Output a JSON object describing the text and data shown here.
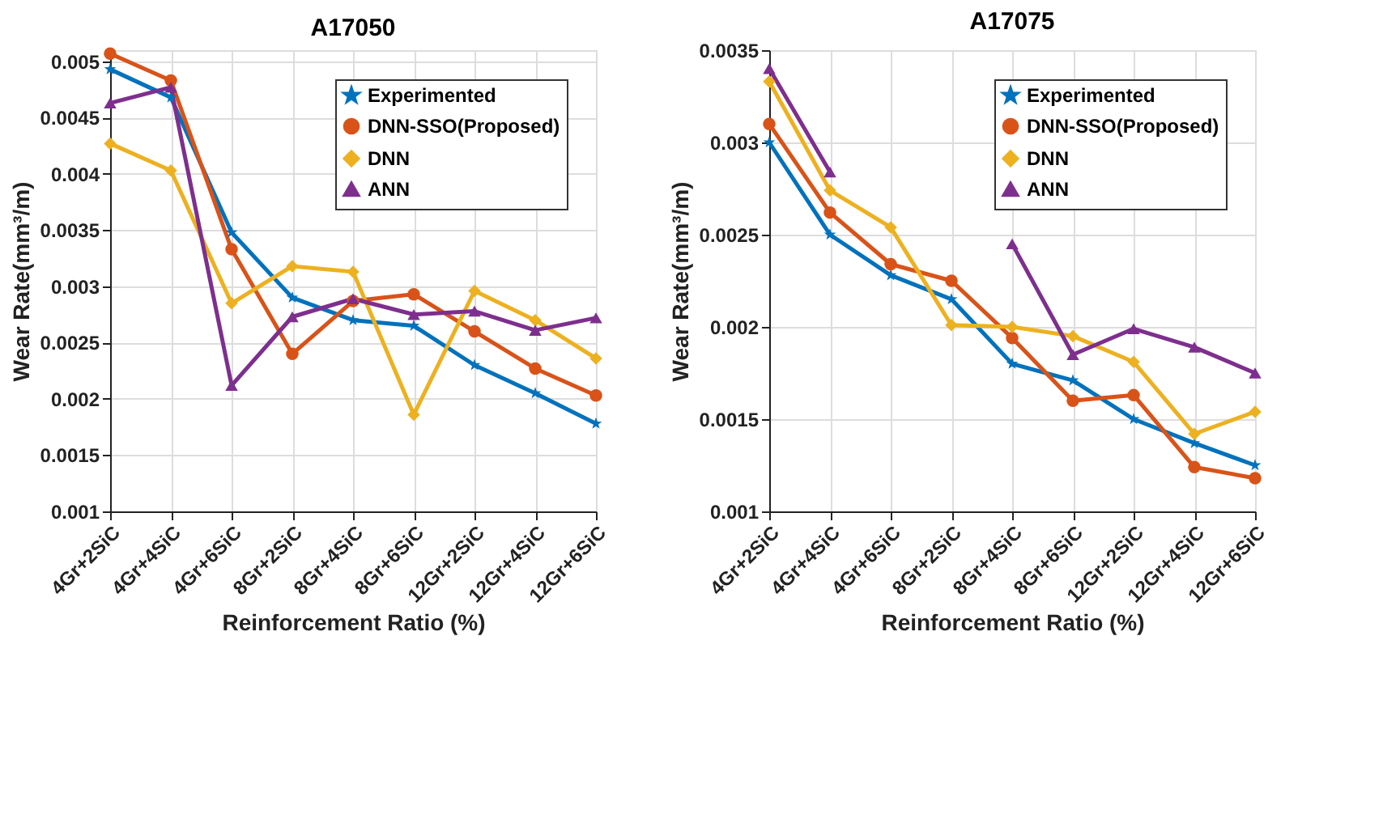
{
  "chart_data": [
    {
      "type": "line",
      "title": "A17050",
      "xlabel": "Reinforcement Ratio (%)",
      "ylabel": "Wear Rate(mm³/m)",
      "categories": [
        "4Gr+2SiC",
        "4Gr+4SiC",
        "4Gr+6SiC",
        "8Gr+2SiC",
        "8Gr+4SiC",
        "8Gr+6SiC",
        "12Gr+2SiC",
        "12Gr+4SiC",
        "12Gr+6SiC"
      ],
      "ylim": [
        0.001,
        0.0051
      ],
      "yticks": [
        0.001,
        0.0015,
        0.002,
        0.0025,
        0.003,
        0.0035,
        0.004,
        0.0045,
        0.005
      ],
      "grid": true,
      "legend": "top right",
      "line_style": "solid",
      "series": [
        {
          "name": "Experimented",
          "color": "#0072bd",
          "marker": "star",
          "values": [
            0.00493,
            0.00468,
            0.00348,
            0.0029,
            0.0027,
            0.00265,
            0.0023,
            0.00205,
            0.00178
          ]
        },
        {
          "name": "DNN-SSO(Proposed)",
          "color": "#d95319",
          "marker": "circle",
          "values": [
            0.00507,
            0.00483,
            0.00333,
            0.0024,
            0.00287,
            0.00293,
            0.0026,
            0.00227,
            0.00203
          ]
        },
        {
          "name": "DNN",
          "color": "#edb120",
          "marker": "diamond",
          "values": [
            0.00427,
            0.00403,
            0.00285,
            0.00318,
            0.00313,
            0.00186,
            0.00296,
            0.0027,
            0.00236
          ]
        },
        {
          "name": "ANN",
          "color": "#7e2f8e",
          "marker": "triangle",
          "values": [
            0.00463,
            0.00477,
            0.00212,
            0.00273,
            0.00289,
            0.00275,
            0.00278,
            0.00261,
            0.00272
          ]
        }
      ]
    },
    {
      "type": "line",
      "title": "A17075",
      "xlabel": "Reinforcement Ratio (%)",
      "ylabel": "Wear Rate(mm³/m)",
      "categories": [
        "4Gr+2SiC",
        "4Gr+4SiC",
        "4Gr+6SiC",
        "8Gr+2SiC",
        "8Gr+4SiC",
        "8Gr+6SiC",
        "12Gr+2SiC",
        "12Gr+4SiC",
        "12Gr+6SiC"
      ],
      "ylim": [
        0.001,
        0.0035
      ],
      "yticks": [
        0.001,
        0.0015,
        0.002,
        0.0025,
        0.003,
        0.0035
      ],
      "grid": true,
      "legend": "top right",
      "line_style": "solid",
      "series": [
        {
          "name": "Experimented",
          "color": "#0072bd",
          "marker": "star",
          "values": [
            0.003,
            0.0025,
            0.00228,
            0.00215,
            0.0018,
            0.00171,
            0.0015,
            0.00137,
            0.00125
          ]
        },
        {
          "name": "DNN-SSO(Proposed)",
          "color": "#d95319",
          "marker": "circle",
          "values": [
            0.0031,
            0.00262,
            0.00234,
            0.00225,
            0.00194,
            0.0016,
            0.00163,
            0.00124,
            0.00118
          ]
        },
        {
          "name": "DNN",
          "color": "#edb120",
          "marker": "diamond",
          "values": [
            0.00333,
            0.00274,
            0.00254,
            0.00201,
            0.002,
            0.00195,
            0.00181,
            0.00142,
            0.00154
          ]
        },
        {
          "name": "ANN",
          "color": "#7e2f8e",
          "marker": "triangle",
          "values": [
            0.0034,
            0.00284,
            null,
            null,
            0.00245,
            0.00185,
            0.00199,
            0.00189,
            0.00175
          ]
        }
      ]
    }
  ]
}
